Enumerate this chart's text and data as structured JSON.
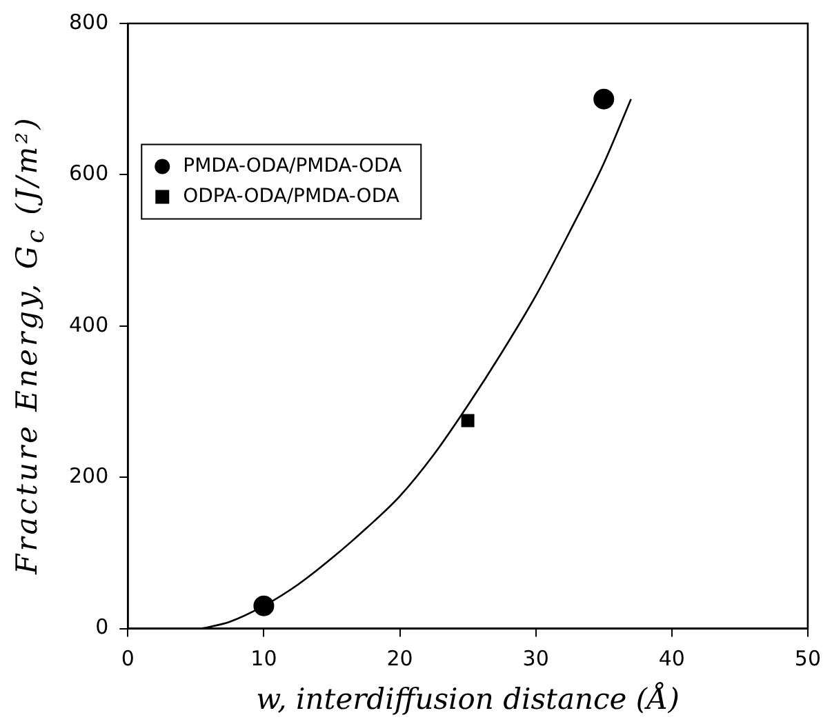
{
  "chart_data": {
    "type": "scatter",
    "xlabel": "w, interdiffusion distance (Å)",
    "ylabel": "Fracture Energy, G$_{c}$ (J/m²)",
    "xlim": [
      0,
      50
    ],
    "xticks": [
      0,
      10,
      20,
      30,
      40,
      50
    ],
    "ylim": [
      0,
      800
    ],
    "yticks": [
      0,
      200,
      400,
      600,
      800
    ],
    "grid": false,
    "legend": "top left",
    "series": [
      {
        "name": "PMDA-ODA/PMDA-ODA",
        "color": "#000000",
        "marker": "circle",
        "x": [
          10,
          35
        ],
        "values": [
          30,
          700
        ]
      },
      {
        "name": "ODPA-ODA/PMDA-ODA",
        "color": "#000000",
        "marker": "square",
        "x": [
          25
        ],
        "values": [
          275
        ]
      },
      {
        "type": "line",
        "color": "#000000",
        "marker": "none",
        "x": [
          5.4,
          7.5,
          10,
          12.5,
          15,
          17.5,
          20,
          22.5,
          25,
          27.5,
          30,
          32.5,
          35,
          37
        ],
        "values": [
          0,
          9,
          30,
          58,
          93,
          132,
          175,
          230,
          295,
          365,
          440,
          525,
          615,
          700
        ]
      }
    ]
  }
}
